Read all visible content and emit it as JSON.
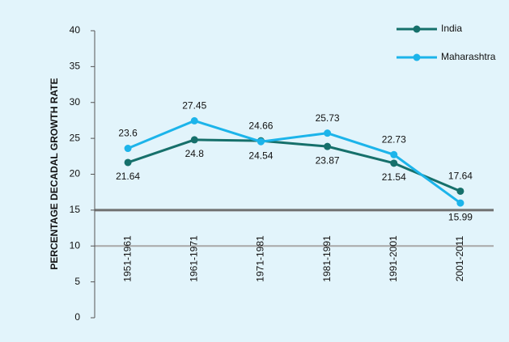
{
  "chart_data": {
    "type": "line",
    "y_label": "PERCENTAGE DECADAL GROWTH RATE",
    "categories": [
      "1951-1961",
      "1961-1971",
      "1971-1981",
      "1981-1991",
      "1991-2001",
      "2001-2011"
    ],
    "series": [
      {
        "name": "India",
        "color": "#16706b",
        "values": [
          21.64,
          24.8,
          24.66,
          23.87,
          21.54,
          17.64
        ]
      },
      {
        "name": "Maharashtra",
        "color": "#1cb4ea",
        "values": [
          23.6,
          27.45,
          24.54,
          25.73,
          22.73,
          15.99
        ]
      }
    ],
    "ylim": [
      0,
      40
    ],
    "yticks": [
      0,
      5,
      10,
      15,
      20,
      25,
      30,
      35,
      40
    ],
    "grid_ticks": [
      10,
      15
    ],
    "background": "#e2f4fb"
  }
}
